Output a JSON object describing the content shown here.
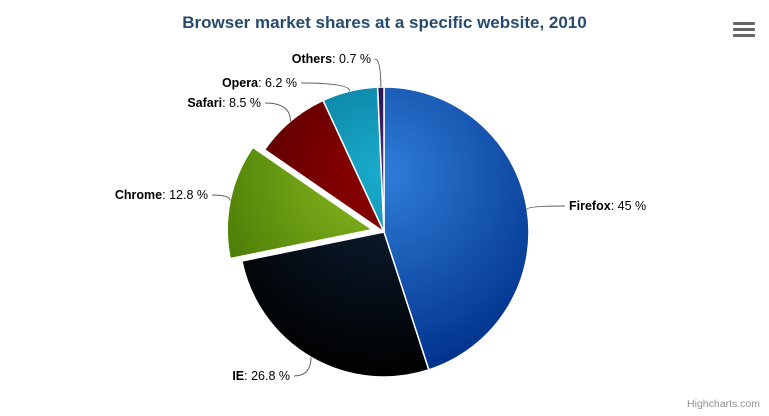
{
  "credits": {
    "text": "Highcharts.com"
  },
  "colors": {
    "background": "#ffffff",
    "title_text": "#274b6d",
    "label_text": "#000000",
    "connector": "#606060",
    "slice_border": "#ffffff",
    "credits_text": "#909090",
    "menu_icon": "#666666"
  },
  "chart_data": {
    "type": "pie",
    "title": "Browser market shares at a specific website, 2010",
    "unit": "%",
    "legend": "none",
    "data_labels": "outside-with-connectors",
    "label_separator": ": ",
    "start_angle_deg": 0,
    "slices": [
      {
        "name": "Firefox",
        "value": 45,
        "value_text": "45 %",
        "color": "#2f7ed8",
        "sliced": false
      },
      {
        "name": "IE",
        "value": 26.8,
        "value_text": "26.8 %",
        "color": "#0d233a",
        "sliced": false
      },
      {
        "name": "Chrome",
        "value": 12.8,
        "value_text": "12.8 %",
        "color": "#8bbc21",
        "sliced": true
      },
      {
        "name": "Safari",
        "value": 8.5,
        "value_text": "8.5 %",
        "color": "#910000",
        "sliced": false
      },
      {
        "name": "Opera",
        "value": 6.2,
        "value_text": "6.2 %",
        "color": "#1aadce",
        "sliced": false
      },
      {
        "name": "Others",
        "value": 0.7,
        "value_text": "0.7 %",
        "color": "#492970",
        "sliced": false
      }
    ]
  }
}
